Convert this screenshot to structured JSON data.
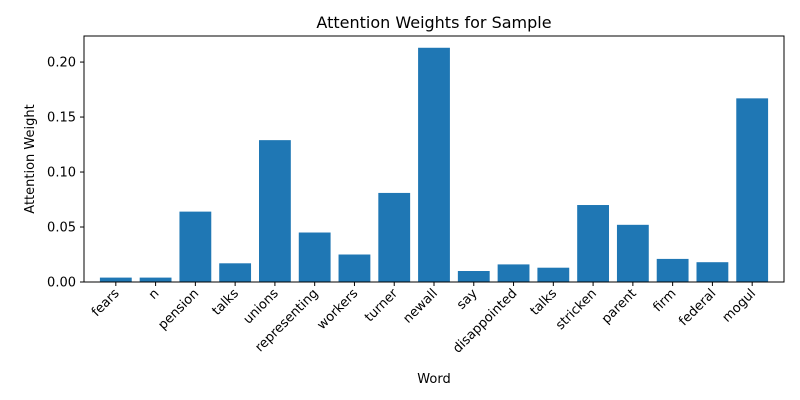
{
  "chart_data": {
    "type": "bar",
    "title": "Attention Weights for Sample",
    "xlabel": "Word",
    "ylabel": "Attention Weight",
    "categories": [
      "fears",
      "n",
      "pension",
      "talks",
      "unions",
      "representing",
      "workers",
      "turner",
      "newall",
      "say",
      "disappointed",
      "talks",
      "stricken",
      "parent",
      "firm",
      "federal",
      "mogul"
    ],
    "values": [
      0.004,
      0.004,
      0.064,
      0.017,
      0.129,
      0.045,
      0.025,
      0.081,
      0.213,
      0.01,
      0.016,
      0.013,
      0.07,
      0.052,
      0.021,
      0.018,
      0.167
    ],
    "yticks": [
      0.0,
      0.05,
      0.1,
      0.15,
      0.2
    ],
    "ytick_labels": [
      "0.00",
      "0.05",
      "0.10",
      "0.15",
      "0.20"
    ],
    "ylim": [
      0,
      0.2237
    ],
    "bar_color": "#1f77b4",
    "grid": false,
    "legend": false
  }
}
